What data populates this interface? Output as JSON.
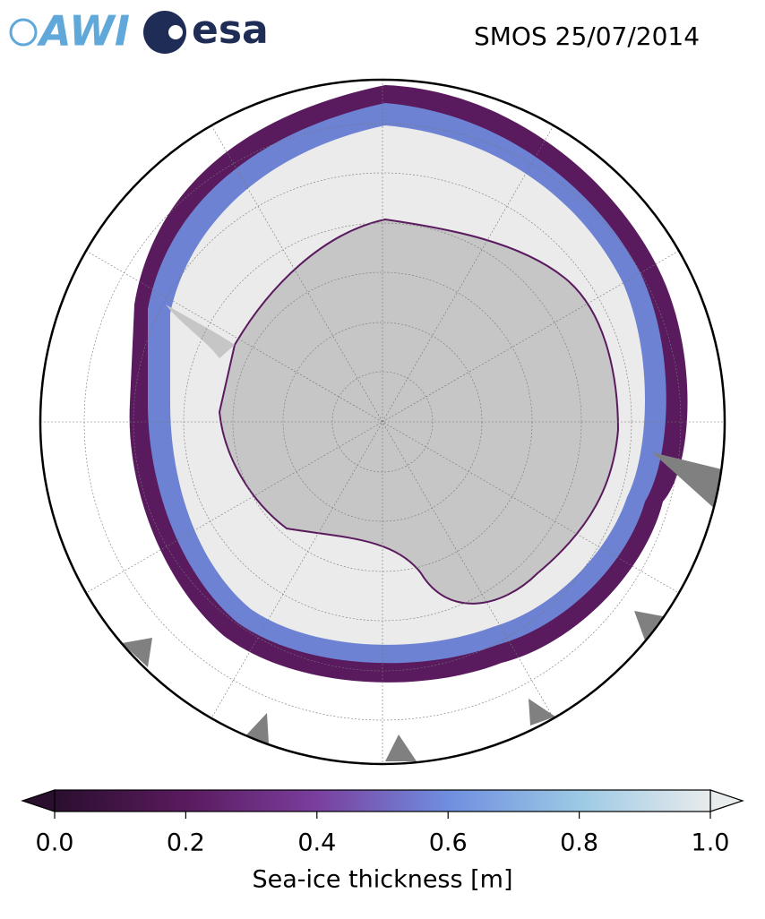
{
  "logos": [
    "AWI",
    "esa"
  ],
  "title": "SMOS 25/07/2014",
  "colorbar": {
    "label": "Sea-ice thickness [m]",
    "vlim": [
      0,
      1
    ],
    "ticks": [
      {
        "value": 0,
        "label": "0.0"
      },
      0.2,
      0.4,
      0.6,
      0.8,
      {
        "value": 1,
        "label": "1.0"
      }
    ],
    "colormap": [
      "#2a0f2e",
      "#5a1a5e",
      "#7a3f9e",
      "#6f8ee0",
      "#9cc9e4",
      "#e8ecec"
    ],
    "extend": "both"
  }
}
